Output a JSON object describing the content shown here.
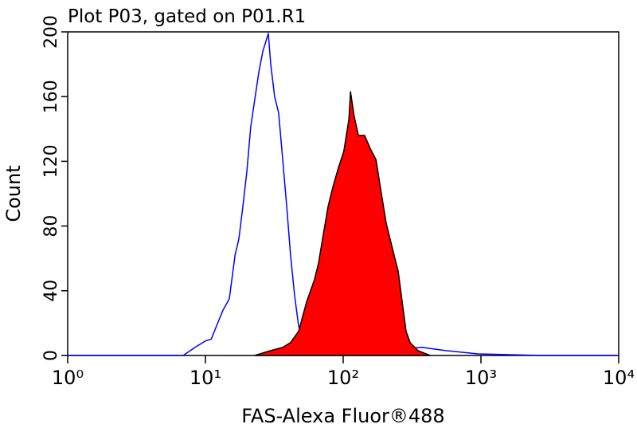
{
  "chart_data": {
    "type": "histogram-overlay",
    "title": "Plot P03, gated on P01.R1",
    "x_label": "FAS-Alexa Fluor®488",
    "y_label": "Count",
    "xscale": "log",
    "xlim": [
      1,
      10000
    ],
    "xticks": [
      {
        "value": 1,
        "label": "10⁰"
      },
      {
        "value": 10,
        "label": "10¹"
      },
      {
        "value": 100,
        "label": "10²"
      },
      {
        "value": 1000,
        "label": "10³"
      },
      {
        "value": 10000,
        "label": "10⁴"
      }
    ],
    "ylim": [
      0,
      200
    ],
    "yticks": [
      0,
      40,
      80,
      120,
      160,
      200
    ],
    "series": [
      {
        "color": "#0000ff",
        "filled": false,
        "x": [
          1,
          6.9,
          8.4,
          10,
          11,
          12,
          13.4,
          14.9,
          16.4,
          17.5,
          18.7,
          20,
          21.3,
          22.8,
          24.4,
          26.1,
          28.6,
          29.8,
          31.8,
          34,
          36.4,
          38.9,
          41.5,
          44.4,
          47.5,
          50.7,
          58,
          86.3,
          129,
          251,
          373,
          557,
          948,
          2750,
          10000
        ],
        "values": [
          0,
          0,
          5,
          9,
          10,
          18,
          28,
          35,
          62,
          72,
          92,
          114,
          141,
          158,
          175,
          188,
          199,
          180,
          160,
          150,
          121,
          92,
          62,
          37,
          18,
          10,
          7,
          5,
          3,
          4,
          5,
          3,
          1,
          0,
          0
        ]
      },
      {
        "color": "#ff0000",
        "edge_color": "#000000",
        "filled": true,
        "x": [
          22.8,
          29.8,
          36.4,
          41.5,
          47.5,
          54.2,
          61.9,
          66.2,
          70.8,
          77.7,
          84.1,
          92.3,
          101,
          110,
          113,
          120,
          129,
          143,
          157,
          173,
          187,
          205,
          219,
          234,
          251,
          268,
          286,
          306,
          349,
          427
        ],
        "values": [
          0,
          3,
          5,
          8,
          15,
          33,
          47,
          57,
          72,
          92,
          104,
          116,
          126,
          146,
          163,
          148,
          136,
          136,
          128,
          121,
          103,
          82,
          72,
          62,
          52,
          33,
          15,
          8,
          3,
          0
        ]
      }
    ]
  }
}
